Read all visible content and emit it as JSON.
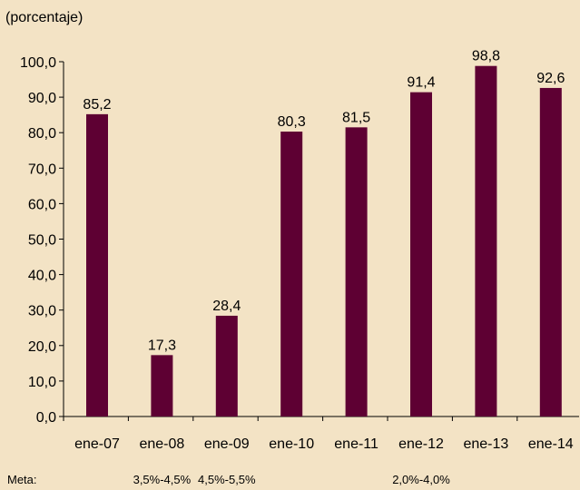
{
  "chart_data": {
    "type": "bar",
    "unit_label": "(porcentaje)",
    "categories": [
      "ene-07",
      "ene-08",
      "ene-09",
      "ene-10",
      "ene-11",
      "ene-12",
      "ene-13",
      "ene-14"
    ],
    "values": [
      85.2,
      17.3,
      28.4,
      80.3,
      81.5,
      91.4,
      98.8,
      92.6
    ],
    "value_labels": [
      "85,2",
      "17,3",
      "28,4",
      "80,3",
      "81,5",
      "91,4",
      "98,8",
      "92,6"
    ],
    "ylim": [
      0,
      100
    ],
    "yticks": [
      0,
      10,
      20,
      30,
      40,
      50,
      60,
      70,
      80,
      90,
      100
    ],
    "ytick_labels": [
      "0,0",
      "10,0",
      "20,0",
      "30,0",
      "40,0",
      "50,0",
      "60,0",
      "70,0",
      "80,0",
      "90,0",
      "100,0"
    ],
    "grid": false,
    "bar_color": "#5e0033",
    "background_color": "#f3e3c5"
  },
  "meta_row": {
    "label": "Meta:",
    "targets": [
      {
        "text": "3,5%-4,5%",
        "category": "ene-08"
      },
      {
        "text": "4,5%-5,5%",
        "category": "ene-09"
      },
      {
        "text": "2,0%-4,0%",
        "category": "ene-12"
      }
    ]
  }
}
